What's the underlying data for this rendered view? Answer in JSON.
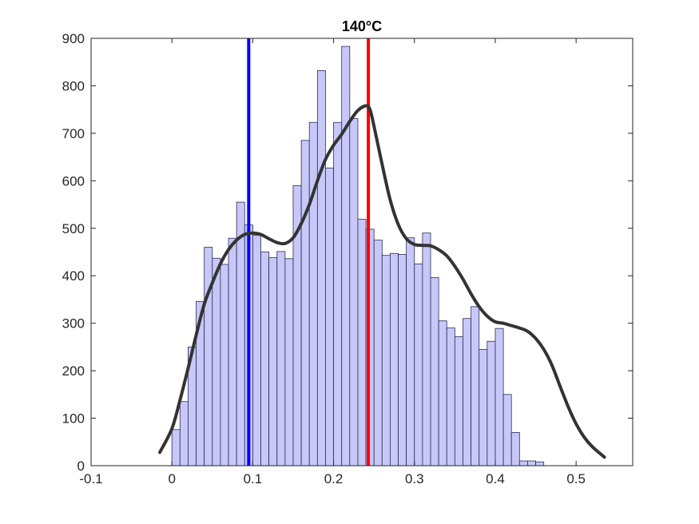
{
  "chart_data": {
    "type": "bar",
    "title": "140°C",
    "xlabel": "",
    "ylabel": "",
    "xlim": [
      -0.1,
      0.57
    ],
    "ylim": [
      0,
      900
    ],
    "xticks": [
      -0.1,
      0,
      0.1,
      0.2,
      0.3,
      0.4,
      0.5
    ],
    "xtick_labels": [
      "-0.1",
      "0",
      "0.1",
      "0.2",
      "0.3",
      "0.4",
      "0.5"
    ],
    "yticks": [
      0,
      100,
      200,
      300,
      400,
      500,
      600,
      700,
      800,
      900
    ],
    "ytick_labels": [
      "0",
      "100",
      "200",
      "300",
      "400",
      "500",
      "600",
      "700",
      "800",
      "900"
    ],
    "grid": false,
    "bin_width": 0.01,
    "bin_edges_start": 0,
    "histogram": [
      76,
      135,
      250,
      346,
      460,
      437,
      424,
      479,
      555,
      507,
      485,
      450,
      438,
      451,
      436,
      590,
      685,
      723,
      832,
      627,
      723,
      883,
      731,
      519,
      498,
      475,
      443,
      447,
      445,
      480,
      425,
      490,
      396,
      305,
      290,
      272,
      310,
      335,
      245,
      262,
      289,
      150,
      70,
      10,
      10,
      8
    ],
    "density_curve": {
      "x": [
        -0.015,
        0,
        0.01,
        0.02,
        0.03,
        0.04,
        0.05,
        0.06,
        0.07,
        0.08,
        0.09,
        0.1,
        0.11,
        0.12,
        0.13,
        0.14,
        0.15,
        0.16,
        0.17,
        0.18,
        0.19,
        0.2,
        0.21,
        0.22,
        0.23,
        0.24,
        0.245,
        0.25,
        0.26,
        0.27,
        0.28,
        0.29,
        0.3,
        0.31,
        0.32,
        0.33,
        0.34,
        0.35,
        0.36,
        0.37,
        0.38,
        0.39,
        0.4,
        0.41,
        0.42,
        0.43,
        0.44,
        0.45,
        0.46,
        0.47,
        0.48,
        0.49,
        0.5,
        0.51,
        0.52,
        0.535
      ],
      "y": [
        28,
        78,
        138,
        205,
        275,
        340,
        385,
        425,
        455,
        475,
        487,
        490,
        487,
        478,
        470,
        468,
        480,
        510,
        550,
        600,
        645,
        675,
        698,
        725,
        748,
        758,
        750,
        715,
        635,
        560,
        508,
        478,
        466,
        464,
        463,
        455,
        442,
        420,
        393,
        362,
        335,
        315,
        303,
        300,
        295,
        290,
        283,
        268,
        245,
        212,
        168,
        125,
        88,
        60,
        40,
        18
      ],
      "color": "#333333"
    },
    "reference_lines": [
      {
        "x": 0.095,
        "color": "#0000ff"
      },
      {
        "x": 0.243,
        "color": "#ff0000"
      }
    ],
    "colors": {
      "bar_fill": "#c8c8f8",
      "bar_edge": "#2b2b55",
      "axis": "#262626"
    }
  }
}
